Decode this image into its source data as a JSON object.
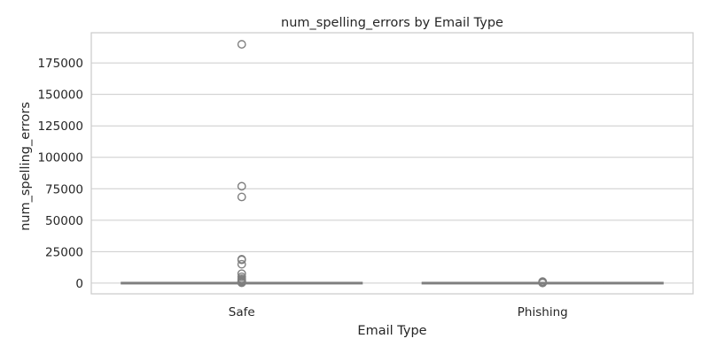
{
  "chart_data": {
    "type": "box",
    "title": "num_spelling_errors by Email Type",
    "xlabel": "Email Type",
    "ylabel": "num_spelling_errors",
    "ylim": [
      -8500,
      199000
    ],
    "y_ticks": [
      0,
      25000,
      50000,
      75000,
      100000,
      125000,
      150000,
      175000
    ],
    "y_tick_labels": [
      "0",
      "25000",
      "50000",
      "75000",
      "100000",
      "125000",
      "150000",
      "175000"
    ],
    "grid": "horizontal",
    "categories": [
      "Safe",
      "Phishing"
    ],
    "boxes": [
      {
        "category": "Safe",
        "whisker_low": 0,
        "q1": 0,
        "median": 0,
        "q3": 0,
        "whisker_high": 0,
        "outliers": [
          189800,
          77000,
          68500,
          19000,
          18500,
          15000,
          7500,
          5000,
          3500,
          2500,
          1800,
          1200,
          800,
          500,
          300
        ]
      },
      {
        "category": "Phishing",
        "whisker_low": 0,
        "q1": 0,
        "median": 0,
        "q3": 0,
        "whisker_high": 0,
        "outliers": [
          1200,
          800,
          500,
          300,
          150
        ]
      }
    ],
    "colors": {
      "box_line": "#7f7f7f",
      "grid": "#cccccc",
      "axes": "#cccccc",
      "text": "#262626"
    }
  }
}
